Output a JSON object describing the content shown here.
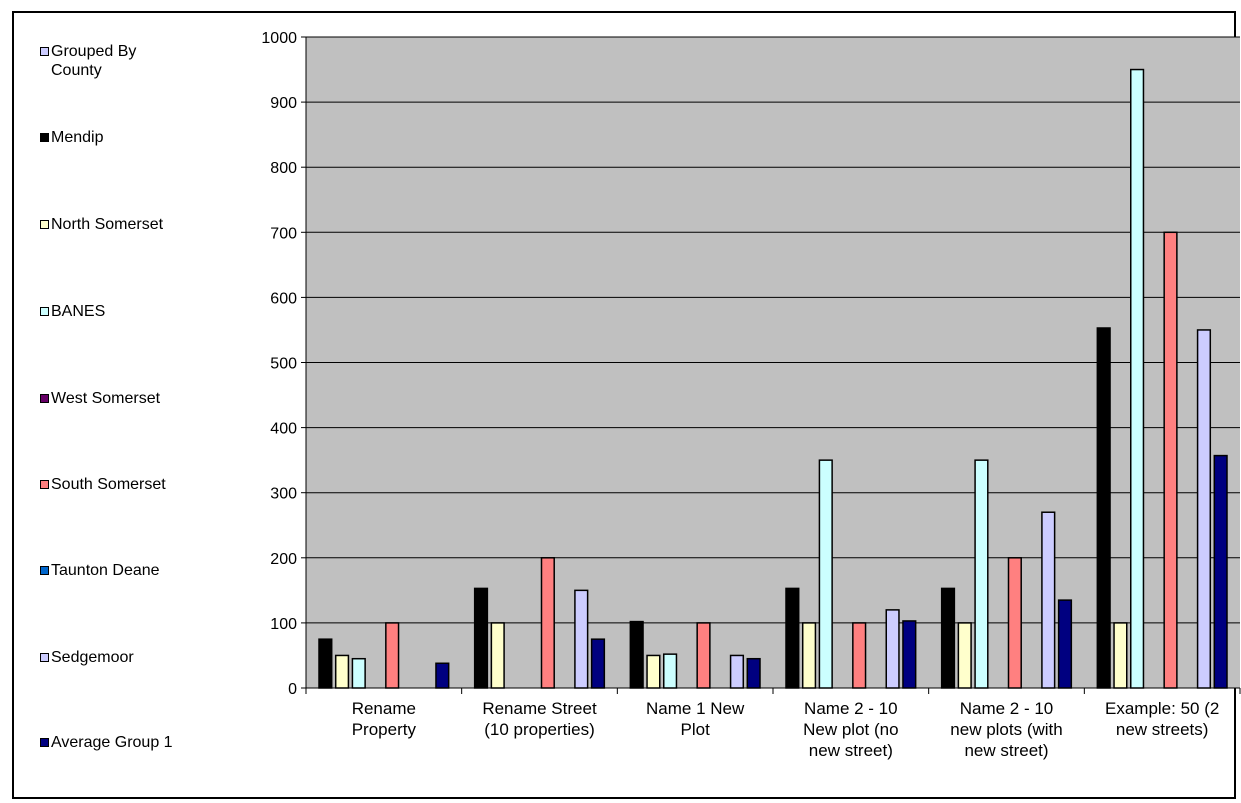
{
  "chart_data": {
    "type": "bar",
    "title": "",
    "xlabel": "",
    "ylabel": "",
    "ylim": [
      0,
      1000
    ],
    "yticks": [
      0,
      100,
      200,
      300,
      400,
      500,
      600,
      700,
      800,
      900,
      1000
    ],
    "grid": true,
    "legend_position": "left",
    "plot_background": "#c0c0c0",
    "categories": [
      [
        "Rename",
        "Property"
      ],
      [
        "Rename Street",
        "(10 properties)"
      ],
      [
        "Name 1 New",
        "Plot"
      ],
      [
        "Name  2 - 10",
        "New plot (no",
        "new street)"
      ],
      [
        "Name 2 - 10",
        "new plots (with",
        "new street)"
      ],
      [
        "Example: 50 (2",
        "new streets)"
      ]
    ],
    "series": [
      {
        "name": "Mendip",
        "color": "#000000",
        "values": [
          75,
          153,
          102,
          153,
          153,
          553
        ]
      },
      {
        "name": "North Somerset",
        "color": "#ffffcc",
        "values": [
          50,
          100,
          50,
          100,
          100,
          100
        ]
      },
      {
        "name": "BANES",
        "color": "#ccffff",
        "values": [
          45,
          null,
          52,
          350,
          350,
          950
        ]
      },
      {
        "name": "West Somerset",
        "color": "#660066",
        "values": [
          null,
          null,
          null,
          null,
          null,
          null
        ]
      },
      {
        "name": "South Somerset",
        "color": "#ff8080",
        "values": [
          100,
          200,
          100,
          100,
          200,
          700
        ]
      },
      {
        "name": "Taunton Deane",
        "color": "#0066cc",
        "values": [
          null,
          null,
          null,
          null,
          null,
          null
        ]
      },
      {
        "name": "Sedgemoor",
        "color": "#ccccff",
        "values": [
          null,
          150,
          50,
          120,
          270,
          550
        ]
      },
      {
        "name": "Average Group 1",
        "color": "#000080",
        "values": [
          38,
          75,
          45,
          103,
          135,
          357
        ]
      }
    ],
    "legend_entries": [
      {
        "label": "Grouped By County",
        "color": "#ccccff"
      },
      {
        "label": "Mendip",
        "color": "#000000"
      },
      {
        "label": "North Somerset",
        "color": "#ffffcc"
      },
      {
        "label": "BANES",
        "color": "#ccffff"
      },
      {
        "label": "West Somerset",
        "color": "#660066"
      },
      {
        "label": "South Somerset",
        "color": "#ff8080"
      },
      {
        "label": "Taunton Deane",
        "color": "#0066cc"
      },
      {
        "label": "Sedgemoor",
        "color": "#ccccff"
      },
      {
        "label": "Average Group 1",
        "color": "#000080"
      }
    ]
  }
}
